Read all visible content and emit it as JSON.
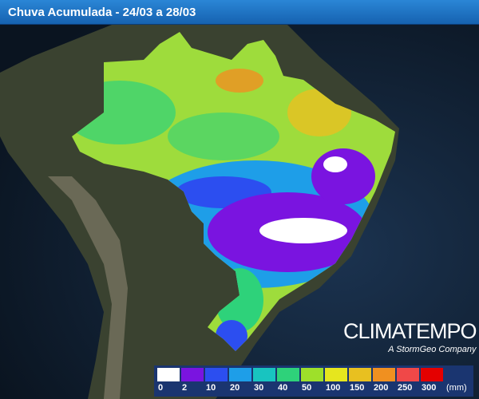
{
  "header": {
    "title": "Chuva Acumulada - 24/03 a 28/03"
  },
  "logo": {
    "name": "CLIMATEMPO",
    "tagline": "A StormGeo Company"
  },
  "legend": {
    "unit": "(mm)",
    "items": [
      {
        "label": "0",
        "color": "#ffffff"
      },
      {
        "label": "2",
        "color": "#7a14e0"
      },
      {
        "label": "10",
        "color": "#2c4ef0"
      },
      {
        "label": "20",
        "color": "#1e9ee8"
      },
      {
        "label": "30",
        "color": "#18c4c0"
      },
      {
        "label": "40",
        "color": "#2ed27a"
      },
      {
        "label": "50",
        "color": "#9ee02a"
      },
      {
        "label": "100",
        "color": "#e6e61e"
      },
      {
        "label": "150",
        "color": "#e8c020"
      },
      {
        "label": "200",
        "color": "#f09020"
      },
      {
        "label": "250",
        "color": "#f04848"
      },
      {
        "label": "300",
        "color": "#e40000"
      }
    ]
  }
}
